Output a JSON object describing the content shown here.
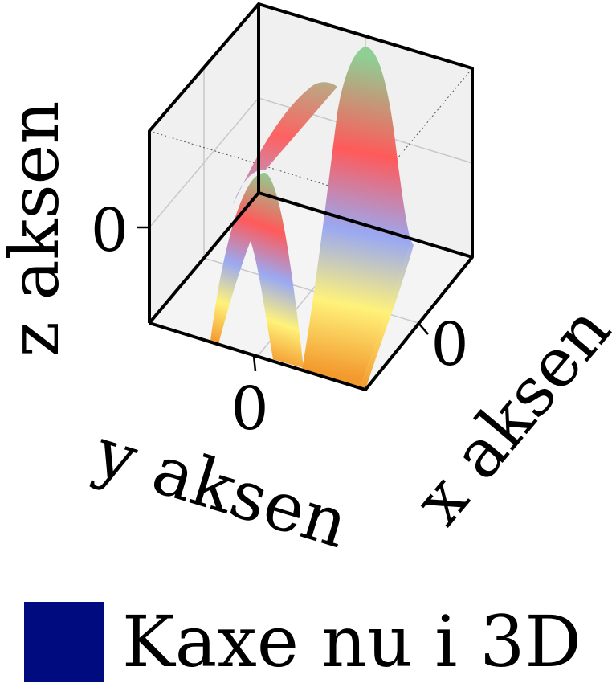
{
  "chart_data": {
    "type": "surface",
    "title": "",
    "xlabel": "x aksen",
    "ylabel": "y aksen",
    "zlabel": "z aksen",
    "x_ticks": [
      "0"
    ],
    "y_ticks": [
      "0"
    ],
    "z_ticks": [
      "0"
    ],
    "grid": true,
    "colormap": [
      "#f39a2e",
      "#fff27a",
      "#9aa9f2",
      "#ff5a5a",
      "#8fcf94"
    ],
    "legend": {
      "position": "bottom",
      "entries": [
        {
          "label": "Kaxe nu i 3D",
          "color": "#000b80"
        }
      ]
    }
  }
}
